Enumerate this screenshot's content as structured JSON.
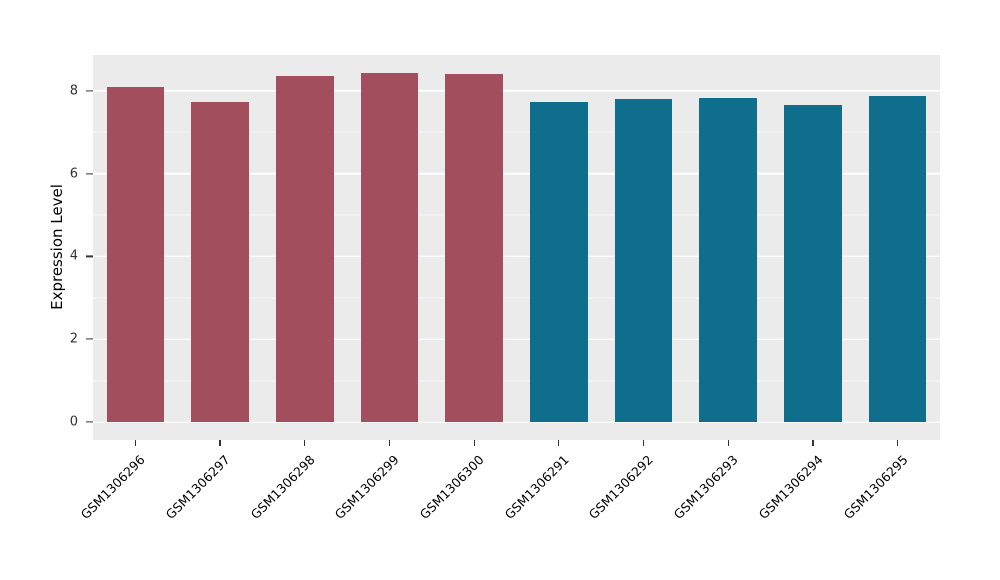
{
  "chart_data": {
    "type": "bar",
    "title": "",
    "xlabel": "",
    "ylabel": "Expression Level",
    "categories": [
      "GSM1306296",
      "GSM1306297",
      "GSM1306298",
      "GSM1306299",
      "GSM1306300",
      "GSM1306291",
      "GSM1306292",
      "GSM1306293",
      "GSM1306294",
      "GSM1306295"
    ],
    "values": [
      8.1,
      7.72,
      8.35,
      8.43,
      8.4,
      7.73,
      7.8,
      7.82,
      7.66,
      7.87
    ],
    "bar_colors": [
      "#A34E5C",
      "#A34E5C",
      "#A34E5C",
      "#A34E5C",
      "#A34E5C",
      "#0E6E8C",
      "#0E6E8C",
      "#0E6E8C",
      "#0E6E8C",
      "#0E6E8C"
    ],
    "groups": [
      {
        "color": "#A34E5C",
        "categories": [
          "GSM1306296",
          "GSM1306297",
          "GSM1306298",
          "GSM1306299",
          "GSM1306300"
        ]
      },
      {
        "color": "#0E6E8C",
        "categories": [
          "GSM1306291",
          "GSM1306292",
          "GSM1306293",
          "GSM1306294",
          "GSM1306295"
        ]
      }
    ],
    "ylim": [
      -0.43,
      8.86
    ],
    "yticks": [
      0,
      2,
      4,
      6,
      8
    ],
    "yticks_minor": [
      1,
      3,
      5,
      7
    ],
    "grid": "on",
    "legend": "none",
    "panel_background": "#EBEBEB",
    "grid_color": "#FFFFFF",
    "tick_color": "#333333"
  }
}
